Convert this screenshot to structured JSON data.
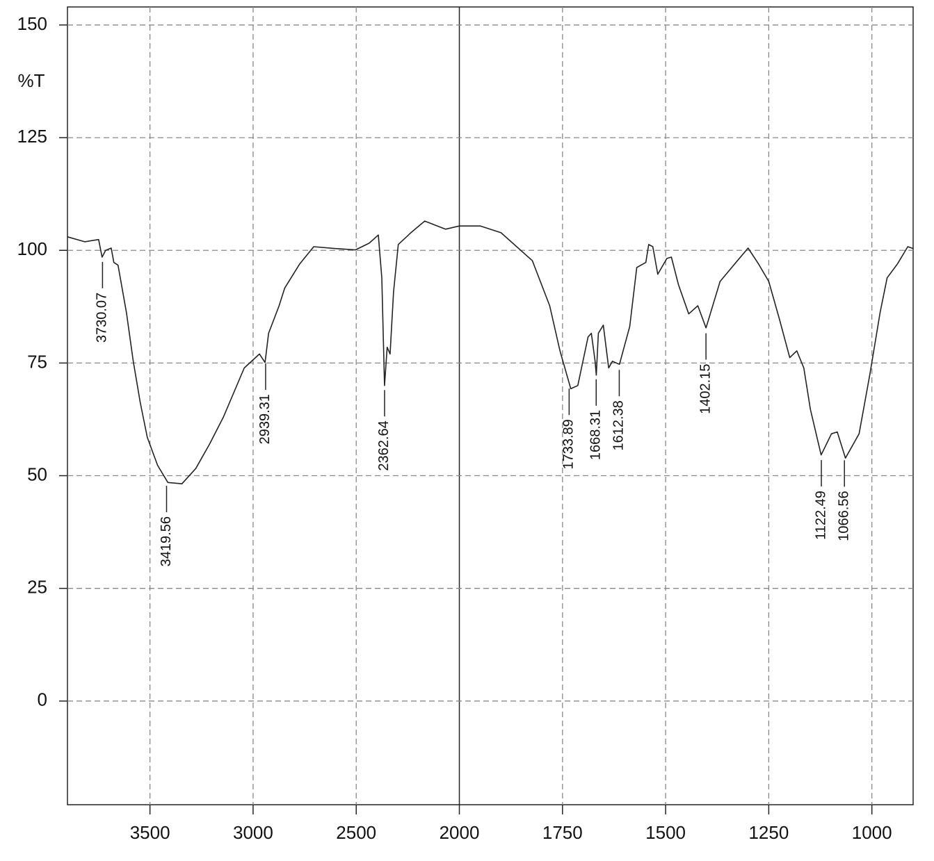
{
  "chart_data": {
    "type": "line",
    "ylabel": "%T",
    "xlim": [
      3900,
      900
    ],
    "xscale_break": 2000,
    "ylim": [
      -23,
      154
    ],
    "xticks": [
      3500,
      3000,
      2500,
      2000,
      1750,
      1500,
      1250,
      1000
    ],
    "yticks": [
      0,
      25,
      50,
      75,
      100,
      125,
      150
    ],
    "grid": true,
    "series": [
      {
        "color": "#222222",
        "x": [
          3900,
          3816,
          3749,
          3732,
          3715,
          3688,
          3675,
          3655,
          3614,
          3581,
          3547,
          3513,
          3463,
          3413,
          3345,
          3278,
          3211,
          3143,
          3043,
          2969,
          2942,
          2925,
          2874,
          2847,
          2774,
          2706,
          2605,
          2504,
          2437,
          2393,
          2376,
          2363,
          2350,
          2336,
          2319,
          2296,
          2235,
          2168,
          2067,
          2000,
          1949,
          1899,
          1823,
          1781,
          1756,
          1730,
          1713,
          1688,
          1680,
          1671,
          1668,
          1663,
          1651,
          1638,
          1629,
          1612,
          1587,
          1570,
          1548,
          1541,
          1531,
          1519,
          1497,
          1486,
          1469,
          1444,
          1422,
          1402,
          1368,
          1326,
          1300,
          1275,
          1250,
          1224,
          1199,
          1182,
          1165,
          1149,
          1123,
          1098,
          1084,
          1064,
          1031,
          1005,
          980,
          963,
          938,
          913,
          900
        ],
        "values": [
          103,
          101.9,
          102.4,
          98.5,
          100,
          100.5,
          97.3,
          96.7,
          86.2,
          75.4,
          66.2,
          58.5,
          52.3,
          48.5,
          48.2,
          51.6,
          57,
          63.1,
          73.9,
          77,
          75.1,
          81.6,
          87.7,
          91.6,
          97,
          100.8,
          100.4,
          100.1,
          101.6,
          103.4,
          93.9,
          70,
          78.5,
          77,
          90.8,
          101.3,
          103.9,
          106.5,
          104.7,
          105.4,
          105.4,
          103.9,
          97.7,
          87.7,
          77.7,
          69.3,
          70,
          80.8,
          81.6,
          75.4,
          72.3,
          81.6,
          83.4,
          73.9,
          75.4,
          74.7,
          83.1,
          96.2,
          97.3,
          101.3,
          100.8,
          94.7,
          98.2,
          98.5,
          92.4,
          85.9,
          87.7,
          82.8,
          93.1,
          97.7,
          100.5,
          97,
          93.1,
          84.7,
          76.2,
          77.7,
          73.9,
          64.7,
          54.6,
          59.3,
          59.7,
          53.9,
          59.3,
          72.4,
          86.2,
          93.9,
          97,
          100.8,
          100.4
        ]
      }
    ],
    "peaks": [
      3730.07,
      3419.56,
      2939.31,
      2362.64,
      1733.89,
      1668.31,
      1612.38,
      1402.15,
      1122.49,
      1066.56
    ]
  }
}
